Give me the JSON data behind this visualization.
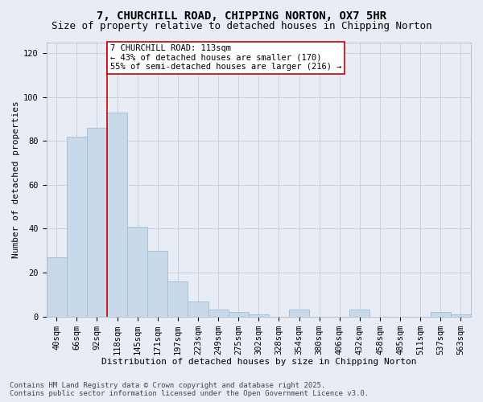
{
  "title_line1": "7, CHURCHILL ROAD, CHIPPING NORTON, OX7 5HR",
  "title_line2": "Size of property relative to detached houses in Chipping Norton",
  "xlabel": "Distribution of detached houses by size in Chipping Norton",
  "ylabel": "Number of detached properties",
  "categories": [
    "40sqm",
    "66sqm",
    "92sqm",
    "118sqm",
    "145sqm",
    "171sqm",
    "197sqm",
    "223sqm",
    "249sqm",
    "275sqm",
    "302sqm",
    "328sqm",
    "354sqm",
    "380sqm",
    "406sqm",
    "432sqm",
    "458sqm",
    "485sqm",
    "511sqm",
    "537sqm",
    "563sqm"
  ],
  "values": [
    27,
    82,
    86,
    93,
    41,
    30,
    16,
    7,
    3,
    2,
    1,
    0,
    3,
    0,
    0,
    3,
    0,
    0,
    0,
    2,
    1
  ],
  "bar_color": "#c8daea",
  "bar_edge_color": "#a0bcd4",
  "grid_color": "#c8d0da",
  "background_color": "#e8edf5",
  "vline_color": "#cc0000",
  "annotation_text": "7 CHURCHILL ROAD: 113sqm\n← 43% of detached houses are smaller (170)\n55% of semi-detached houses are larger (216) →",
  "annotation_box_color": "#ffffff",
  "annotation_box_edge": "#cc0000",
  "ylim": [
    0,
    125
  ],
  "yticks": [
    0,
    20,
    40,
    60,
    80,
    100,
    120
  ],
  "footer_line1": "Contains HM Land Registry data © Crown copyright and database right 2025.",
  "footer_line2": "Contains public sector information licensed under the Open Government Licence v3.0.",
  "title_fontsize": 10,
  "subtitle_fontsize": 9,
  "axis_label_fontsize": 8,
  "tick_fontsize": 7.5,
  "annotation_fontsize": 7.5,
  "footer_fontsize": 6.5
}
